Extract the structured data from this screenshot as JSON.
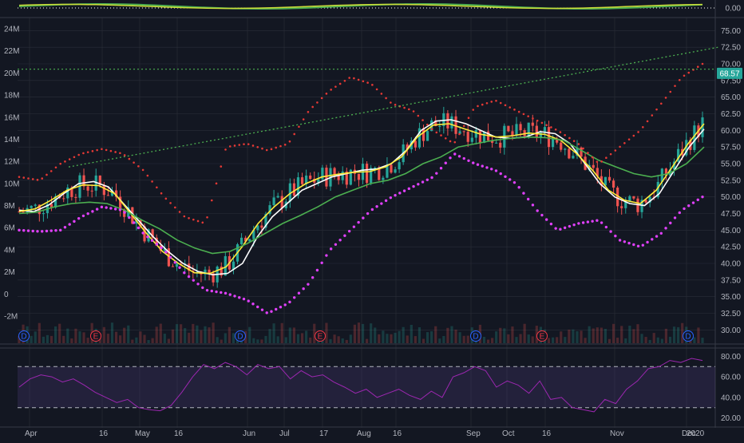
{
  "colors": {
    "background": "#131722",
    "grid": "#2a2e39",
    "axis_text": "#b2b5be",
    "candle_up": "#26a69a",
    "candle_down": "#ef5350",
    "ma_white": "#ffffff",
    "ma_yellow": "#ffeb3b",
    "ma_green": "#4caf50",
    "sar_red": "#e53935",
    "sar_magenta": "#e040fb",
    "trendline": "#4caf50",
    "rsi_line": "#9c27b0",
    "rsi_band": "#7e57c2",
    "top_osc_green": "#4caf50",
    "top_osc_yellow": "#cddc39",
    "price_tag": "#26a69a",
    "event_dividend": "#2962ff",
    "event_earnings": "#f23645"
  },
  "chart_data": {
    "type": "candlestick",
    "x_tick_labels": [
      "Apr",
      "16",
      "May",
      "16",
      "Jun",
      "Jul",
      "17",
      "Aug",
      "16",
      "Sep",
      "Oct",
      "16",
      "Nov",
      "Dec",
      "2020"
    ],
    "price_axis": {
      "ylim": [
        28.0,
        76.0
      ],
      "ticks": [
        "75.00",
        "72.50",
        "70.00",
        "67.50",
        "65.00",
        "62.50",
        "60.00",
        "57.50",
        "55.00",
        "52.50",
        "50.00",
        "47.50",
        "45.00",
        "42.50",
        "40.00",
        "37.50",
        "35.00",
        "32.50",
        "30.00"
      ],
      "last_price": "68.57"
    },
    "volume_axis": {
      "ticks": [
        "24M",
        "22M",
        "20M",
        "18M",
        "16M",
        "14M",
        "12M",
        "10M",
        "8M",
        "6M",
        "4M",
        "2M",
        "0",
        "-2M"
      ]
    },
    "top_indicator": {
      "ticks": [
        "0.00"
      ]
    },
    "rsi": {
      "ticks": [
        "80.00",
        "60.00",
        "40.00",
        "20.00"
      ],
      "upper_band": 70,
      "lower_band": 30,
      "values": [
        50,
        58,
        62,
        60,
        55,
        58,
        52,
        45,
        40,
        35,
        38,
        30,
        28,
        27,
        32,
        45,
        60,
        72,
        68,
        74,
        70,
        62,
        72,
        68,
        70,
        58,
        66,
        60,
        62,
        55,
        50,
        44,
        48,
        40,
        44,
        48,
        42,
        38,
        46,
        40,
        60,
        64,
        70,
        66,
        50,
        56,
        52,
        44,
        56,
        38,
        40,
        30,
        28,
        26,
        38,
        34,
        48,
        56,
        68,
        70,
        76,
        74,
        78,
        76
      ]
    },
    "series": [
      {
        "kind": "moving_average",
        "color_key": "ma_white",
        "values": [
          48.0,
          47.8,
          48.8,
          50.5,
          52.0,
          52.3,
          51.5,
          49.0,
          46.5,
          44.0,
          41.8,
          40.0,
          38.8,
          38.3,
          38.5,
          40.0,
          44.0,
          47.0,
          49.0,
          51.0,
          52.0,
          53.0,
          53.5,
          54.0,
          54.2,
          55.0,
          57.0,
          60.0,
          61.4,
          61.6,
          61.0,
          60.0,
          59.0,
          58.8,
          59.0,
          59.8,
          59.5,
          58.0,
          55.0,
          52.0,
          50.0,
          49.0,
          48.7,
          50.5,
          54.0,
          57.5,
          60.2
        ]
      },
      {
        "kind": "moving_average",
        "color_key": "ma_yellow",
        "values": [
          47.8,
          48.2,
          49.5,
          51.0,
          51.8,
          51.7,
          50.5,
          47.5,
          44.5,
          41.8,
          40.0,
          38.6,
          38.5,
          39.5,
          42.5,
          46.0,
          48.5,
          50.5,
          52.0,
          53.0,
          53.4,
          53.7,
          53.8,
          54.5,
          56.0,
          59.0,
          60.8,
          61.0,
          60.2,
          59.4,
          59.0,
          59.2,
          59.6,
          59.4,
          58.5,
          56.5,
          54.0,
          51.0,
          49.5,
          49.0,
          51.0,
          54.5,
          58.0,
          61.0
        ]
      },
      {
        "kind": "moving_average",
        "color_key": "ma_green",
        "values": [
          47.5,
          47.7,
          48.5,
          49.0,
          49.2,
          49.0,
          48.0,
          46.5,
          45.2,
          43.5,
          42.3,
          41.5,
          41.8,
          43.0,
          44.5,
          46.0,
          47.2,
          48.5,
          50.0,
          51.0,
          52.0,
          52.5,
          53.5,
          55.0,
          56.0,
          57.5,
          58.0,
          58.5,
          58.8,
          59.0,
          58.9,
          58.5,
          57.0,
          55.5,
          54.5,
          53.5,
          53.0,
          53.5,
          55.0,
          57.5
        ]
      },
      {
        "kind": "parabolic_sar",
        "position": "above",
        "color_key": "sar_red",
        "values": [
          53.0,
          52.5,
          55.0,
          56.5,
          57.2,
          56.5,
          54.0,
          50.0,
          47.0,
          46.0,
          57.5,
          58.0,
          57.0,
          58.0,
          63.0,
          66.0,
          68.0,
          67.0,
          64.0,
          63.0,
          60.0,
          58.0,
          63.5,
          64.5,
          63.0,
          61.5,
          60.0,
          58.0,
          55.0,
          57.5,
          60.0,
          64.0,
          68.0,
          70.0
        ]
      },
      {
        "kind": "parabolic_sar",
        "position": "below",
        "color_key": "sar_magenta",
        "values": [
          45.0,
          44.8,
          45.0,
          47.0,
          48.5,
          48.0,
          44.5,
          42.0,
          38.5,
          36.0,
          35.5,
          34.5,
          32.5,
          34.0,
          37.0,
          42.0,
          45.0,
          48.0,
          50.0,
          51.5,
          53.0,
          56.5,
          55.0,
          54.0,
          52.0,
          48.0,
          45.0,
          46.0,
          46.5,
          43.5,
          42.5,
          44.5,
          48.0,
          50.0
        ]
      },
      {
        "kind": "trendline",
        "from": 54.5,
        "to": 72.5
      },
      {
        "kind": "horizontal_line",
        "value": 69.2
      }
    ],
    "events": [
      "D",
      "E",
      "D",
      "E",
      "D",
      "E",
      "D"
    ]
  }
}
